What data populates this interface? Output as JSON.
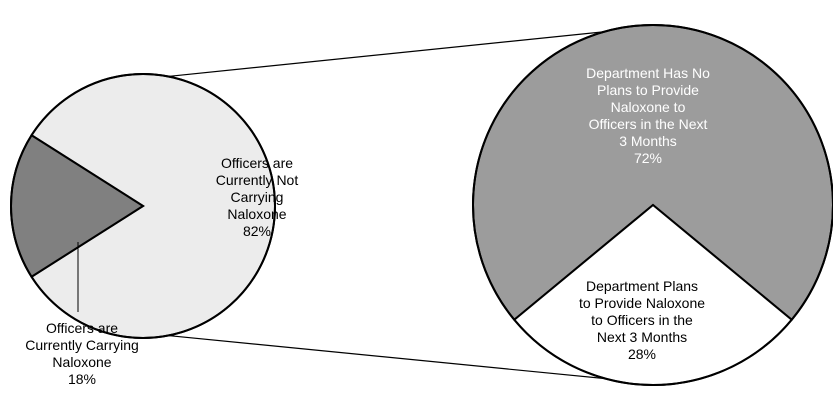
{
  "chart_data": {
    "type": "pie",
    "title": "",
    "slices": [
      {
        "label_lines": [
          "Officers are",
          "Currently Not",
          "Carrying",
          "Naloxone",
          "82%"
        ],
        "value": 82,
        "color": "#ececec",
        "text_color": "#000000"
      },
      {
        "label_lines": [
          "Officers are",
          "Currently Carrying",
          "Naloxone",
          "18%"
        ],
        "value": 18,
        "color": "#808080",
        "text_color": "#000000"
      }
    ],
    "breakdown": {
      "of_slice": 0,
      "slices": [
        {
          "label_lines": [
            "Department Has No",
            "Plans to Provide",
            "Naloxone to",
            "Officers in the Next",
            "3 Months",
            "72%"
          ],
          "value": 72,
          "color": "#9c9c9c",
          "text_color": "#ffffff"
        },
        {
          "label_lines": [
            "Department Plans",
            "to Provide Naloxone",
            "to Officers in the",
            "Next 3 Months",
            "28%"
          ],
          "value": 28,
          "color": "#ffffff",
          "text_color": "#000000"
        }
      ]
    }
  }
}
